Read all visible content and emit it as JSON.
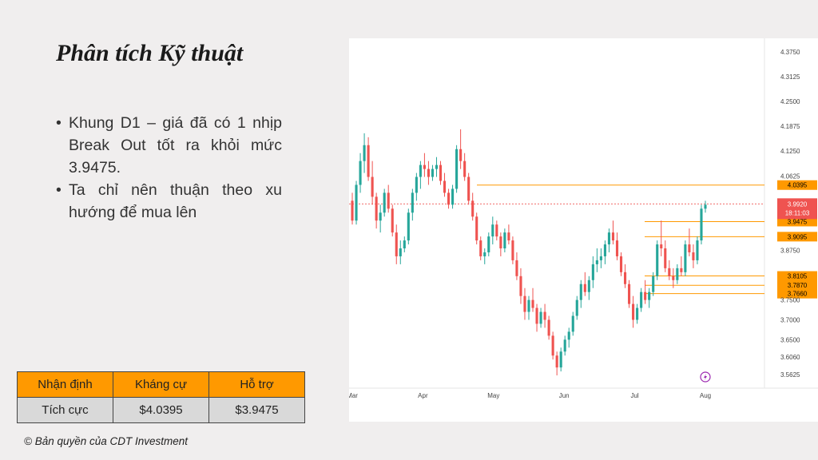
{
  "slide": {
    "title": "Phân tích Kỹ thuật",
    "bullets": [
      "Khung D1 – giá đã có 1 nhịp Break Out tốt ra khỏi mức 3.9475.",
      "Ta chỉ nên thuận theo xu hướng để mua lên"
    ],
    "table": {
      "headers": [
        "Nhận định",
        "Kháng cự",
        "Hỗ trợ"
      ],
      "row": [
        "Tích cực",
        "$4.0395",
        "$3.9475"
      ]
    },
    "copyright": "© Bản quyền của CDT Investment",
    "colors": {
      "accent": "#ff9900",
      "background": "#f0eeee",
      "up": "#26a69a",
      "down": "#ef5350"
    }
  },
  "chart_data": {
    "type": "candlestick",
    "x_tick_labels": [
      "Mar",
      "Apr",
      "May",
      "Jun",
      "Jul",
      "Aug"
    ],
    "y_tick_labels": [
      "4.3750",
      "4.3125",
      "4.2500",
      "4.1875",
      "4.1250",
      "4.0625",
      "3.8750",
      "3.7500",
      "3.7000",
      "3.6500",
      "3.6060",
      "3.5625"
    ],
    "ylim": [
      3.54,
      4.385
    ],
    "current_price": "3.9920",
    "countdown": "18:11:03",
    "levels": [
      "4.0395",
      "3.9475",
      "3.9095",
      "3.8105",
      "3.7870",
      "3.7660"
    ],
    "candles": [
      [
        4.0,
        4.02,
        3.94,
        3.95
      ],
      [
        3.95,
        4.05,
        3.94,
        4.04
      ],
      [
        4.04,
        4.12,
        4.02,
        4.1
      ],
      [
        4.1,
        4.17,
        4.07,
        4.14
      ],
      [
        4.14,
        4.16,
        4.05,
        4.06
      ],
      [
        4.06,
        4.1,
        3.99,
        4.01
      ],
      [
        4.01,
        4.02,
        3.93,
        3.95
      ],
      [
        3.95,
        3.99,
        3.92,
        3.97
      ],
      [
        3.97,
        4.03,
        3.96,
        4.02
      ],
      [
        4.02,
        4.04,
        3.97,
        3.98
      ],
      [
        3.98,
        3.99,
        3.91,
        3.92
      ],
      [
        3.92,
        3.94,
        3.84,
        3.86
      ],
      [
        3.86,
        3.9,
        3.84,
        3.88
      ],
      [
        3.88,
        3.91,
        3.87,
        3.9
      ],
      [
        3.9,
        3.98,
        3.89,
        3.97
      ],
      [
        3.97,
        4.03,
        3.95,
        4.02
      ],
      [
        4.02,
        4.07,
        4.0,
        4.06
      ],
      [
        4.06,
        4.1,
        4.03,
        4.09
      ],
      [
        4.09,
        4.12,
        4.06,
        4.08
      ],
      [
        4.08,
        4.1,
        4.04,
        4.06
      ],
      [
        4.06,
        4.09,
        4.05,
        4.08
      ],
      [
        4.08,
        4.11,
        4.06,
        4.09
      ],
      [
        4.09,
        4.1,
        4.04,
        4.05
      ],
      [
        4.05,
        4.07,
        4.01,
        4.02
      ],
      [
        4.02,
        4.03,
        3.98,
        3.99
      ],
      [
        3.99,
        4.04,
        3.98,
        4.03
      ],
      [
        4.03,
        4.14,
        4.02,
        4.13
      ],
      [
        4.13,
        4.18,
        4.08,
        4.1
      ],
      [
        4.1,
        4.12,
        4.05,
        4.06
      ],
      [
        4.06,
        4.07,
        3.99,
        4.0
      ],
      [
        4.0,
        4.02,
        3.95,
        3.96
      ],
      [
        3.96,
        3.97,
        3.89,
        3.9
      ],
      [
        3.9,
        3.91,
        3.85,
        3.86
      ],
      [
        3.86,
        3.88,
        3.84,
        3.87
      ],
      [
        3.87,
        3.92,
        3.86,
        3.91
      ],
      [
        3.91,
        3.96,
        3.89,
        3.94
      ],
      [
        3.94,
        3.95,
        3.9,
        3.91
      ],
      [
        3.91,
        3.92,
        3.86,
        3.88
      ],
      [
        3.88,
        3.93,
        3.87,
        3.92
      ],
      [
        3.92,
        3.94,
        3.89,
        3.9
      ],
      [
        3.9,
        3.91,
        3.84,
        3.85
      ],
      [
        3.85,
        3.87,
        3.8,
        3.81
      ],
      [
        3.81,
        3.83,
        3.74,
        3.76
      ],
      [
        3.76,
        3.78,
        3.7,
        3.72
      ],
      [
        3.72,
        3.76,
        3.7,
        3.75
      ],
      [
        3.75,
        3.78,
        3.72,
        3.73
      ],
      [
        3.73,
        3.74,
        3.67,
        3.69
      ],
      [
        3.69,
        3.73,
        3.68,
        3.72
      ],
      [
        3.72,
        3.74,
        3.68,
        3.7
      ],
      [
        3.7,
        3.71,
        3.65,
        3.66
      ],
      [
        3.66,
        3.67,
        3.6,
        3.61
      ],
      [
        3.61,
        3.62,
        3.56,
        3.58
      ],
      [
        3.58,
        3.63,
        3.57,
        3.62
      ],
      [
        3.62,
        3.66,
        3.61,
        3.65
      ],
      [
        3.65,
        3.68,
        3.63,
        3.67
      ],
      [
        3.67,
        3.72,
        3.66,
        3.71
      ],
      [
        3.71,
        3.76,
        3.7,
        3.75
      ],
      [
        3.75,
        3.8,
        3.73,
        3.79
      ],
      [
        3.79,
        3.82,
        3.76,
        3.77
      ],
      [
        3.77,
        3.81,
        3.75,
        3.8
      ],
      [
        3.8,
        3.86,
        3.78,
        3.84
      ],
      [
        3.84,
        3.88,
        3.82,
        3.85
      ],
      [
        3.85,
        3.88,
        3.83,
        3.86
      ],
      [
        3.86,
        3.9,
        3.84,
        3.89
      ],
      [
        3.89,
        3.93,
        3.87,
        3.92
      ],
      [
        3.92,
        3.95,
        3.89,
        3.9
      ],
      [
        3.9,
        3.92,
        3.85,
        3.86
      ],
      [
        3.86,
        3.87,
        3.81,
        3.82
      ],
      [
        3.82,
        3.84,
        3.78,
        3.79
      ],
      [
        3.79,
        3.8,
        3.73,
        3.74
      ],
      [
        3.74,
        3.76,
        3.68,
        3.7
      ],
      [
        3.7,
        3.74,
        3.69,
        3.73
      ],
      [
        3.73,
        3.78,
        3.72,
        3.77
      ],
      [
        3.77,
        3.8,
        3.74,
        3.75
      ],
      [
        3.75,
        3.78,
        3.73,
        3.77
      ],
      [
        3.77,
        3.82,
        3.76,
        3.81
      ],
      [
        3.81,
        3.9,
        3.8,
        3.89
      ],
      [
        3.89,
        3.95,
        3.86,
        3.88
      ],
      [
        3.88,
        3.9,
        3.82,
        3.83
      ],
      [
        3.83,
        3.85,
        3.8,
        3.81
      ],
      [
        3.81,
        3.83,
        3.78,
        3.8
      ],
      [
        3.8,
        3.84,
        3.79,
        3.83
      ],
      [
        3.83,
        3.86,
        3.81,
        3.82
      ],
      [
        3.82,
        3.9,
        3.81,
        3.89
      ],
      [
        3.89,
        3.93,
        3.86,
        3.87
      ],
      [
        3.87,
        3.89,
        3.83,
        3.85
      ],
      [
        3.85,
        3.91,
        3.84,
        3.9
      ],
      [
        3.9,
        3.99,
        3.89,
        3.98
      ],
      [
        3.98,
        4.0,
        3.97,
        3.99
      ]
    ]
  }
}
